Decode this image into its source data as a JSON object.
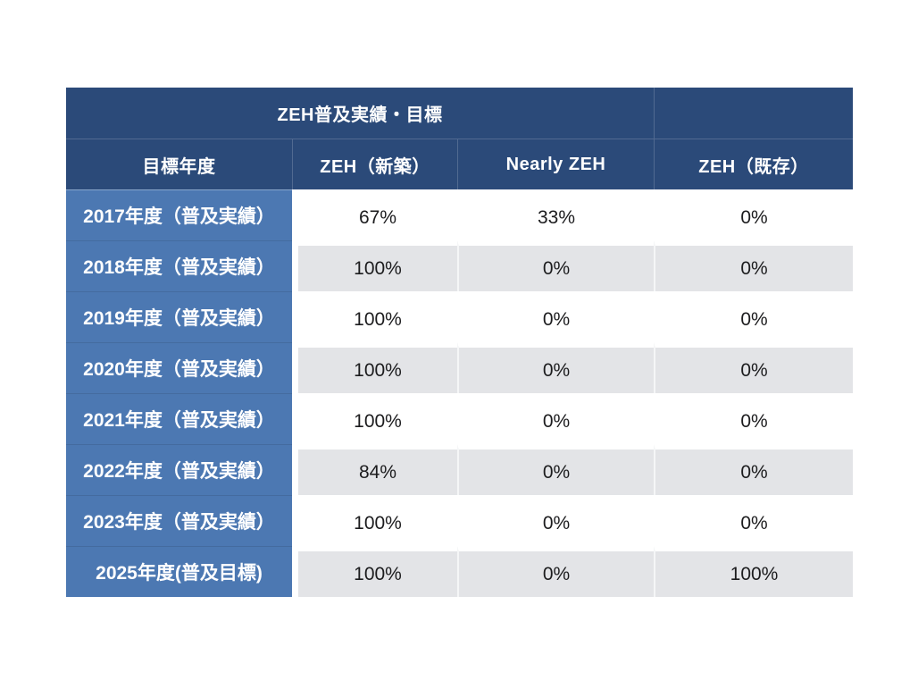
{
  "colors": {
    "header_navy": "#2B4A79",
    "label_blue": "#4C78B2",
    "stripe_gray": "#E3E4E7",
    "value_text": "#1c1c1e",
    "background": "#ffffff"
  },
  "chart_data": {
    "type": "table",
    "title": "ZEH普及実績・目標",
    "columns": [
      "目標年度",
      "ZEH（新築）",
      "Nearly ZEH",
      "ZEH（既存）"
    ],
    "rows": [
      {
        "label": "2017年度（普及実績）",
        "values": [
          "67%",
          "33%",
          "0%"
        ]
      },
      {
        "label": "2018年度（普及実績）",
        "values": [
          "100%",
          "0%",
          "0%"
        ]
      },
      {
        "label": "2019年度（普及実績）",
        "values": [
          "100%",
          "0%",
          "0%"
        ]
      },
      {
        "label": "2020年度（普及実績）",
        "values": [
          "100%",
          "0%",
          "0%"
        ]
      },
      {
        "label": "2021年度（普及実績）",
        "values": [
          "100%",
          "0%",
          "0%"
        ]
      },
      {
        "label": "2022年度（普及実績）",
        "values": [
          "84%",
          "0%",
          "0%"
        ]
      },
      {
        "label": "2023年度（普及実績）",
        "values": [
          "100%",
          "0%",
          "0%"
        ]
      },
      {
        "label": "2025年度(普及目標)",
        "values": [
          "100%",
          "0%",
          "100%"
        ]
      }
    ]
  }
}
